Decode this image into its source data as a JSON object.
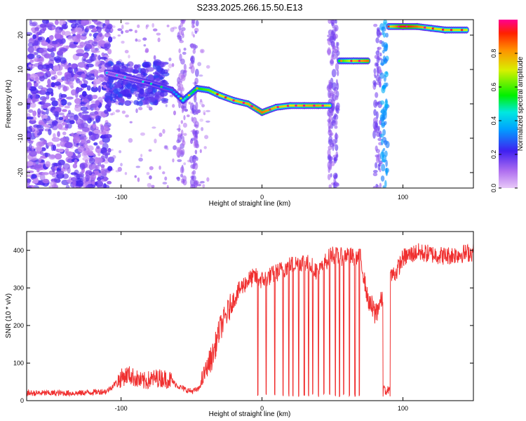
{
  "title": "S233.2025.266.15.50.E13",
  "chart_data": [
    {
      "type": "heatmap",
      "xlabel": "Height of straight line (km)",
      "ylabel": "Frequency (Hz)",
      "xlim": [
        -167,
        150
      ],
      "ylim": [
        -24.5,
        24.5
      ],
      "xticks": [
        -100,
        0,
        100
      ],
      "yticks": [
        20,
        10,
        0,
        -10,
        -20
      ],
      "colorbar": {
        "label": "Normalized spectral amplitude",
        "range": [
          0,
          1
        ],
        "ticks": [
          "0.0",
          "0.2",
          "0.4",
          "0.6",
          "0.8"
        ],
        "tick_values": [
          0.0,
          0.2,
          0.4,
          0.6,
          0.8
        ]
      },
      "ridge": [
        {
          "x": -110,
          "y": 9,
          "amp": 0.15
        },
        {
          "x": -100,
          "y": 8,
          "amp": 0.15
        },
        {
          "x": -90,
          "y": 7,
          "amp": 0.18
        },
        {
          "x": -80,
          "y": 6,
          "amp": 0.22
        },
        {
          "x": -64,
          "y": 4,
          "amp": 0.3
        },
        {
          "x": -56,
          "y": 1,
          "amp": 0.45
        },
        {
          "x": -46,
          "y": 4.5,
          "amp": 0.55
        },
        {
          "x": -38,
          "y": 4,
          "amp": 0.62
        },
        {
          "x": -30,
          "y": 2.5,
          "amp": 0.7
        },
        {
          "x": -20,
          "y": 1,
          "amp": 0.74
        },
        {
          "x": -10,
          "y": 0,
          "amp": 0.78
        },
        {
          "x": 0,
          "y": -2.5,
          "amp": 0.85
        },
        {
          "x": 10,
          "y": -1,
          "amp": 0.75
        },
        {
          "x": 20,
          "y": -0.5,
          "amp": 0.72
        },
        {
          "x": 30,
          "y": -0.5,
          "amp": 0.78
        },
        {
          "x": 40,
          "y": -0.5,
          "amp": 0.8
        },
        {
          "x": 48,
          "y": -0.5,
          "amp": 0.7
        },
        {
          "x": 55,
          "y": 12.5,
          "amp": 0.55
        },
        {
          "x": 65,
          "y": 12.5,
          "amp": 0.75
        },
        {
          "x": 75,
          "y": 12.5,
          "amp": 0.85
        },
        {
          "x": 90,
          "y": 22.5,
          "amp": 0.7
        },
        {
          "x": 100,
          "y": 22.5,
          "amp": 0.95
        },
        {
          "x": 110,
          "y": 22.5,
          "amp": 0.85
        },
        {
          "x": 120,
          "y": 22,
          "amp": 0.7
        },
        {
          "x": 130,
          "y": 21.5,
          "amp": 0.72
        },
        {
          "x": 145,
          "y": 21.5,
          "amp": 0.7
        }
      ]
    },
    {
      "type": "line",
      "xlabel": "Height of straight line (km)",
      "ylabel": "SNR (10 * v/v)",
      "xlim": [
        -167,
        150
      ],
      "ylim": [
        0,
        450
      ],
      "xticks": [
        -100,
        0,
        100
      ],
      "yticks": [
        0,
        100,
        200,
        300,
        400
      ],
      "color": "#f03030",
      "series": [
        {
          "x": [
            -167,
            -150,
            -130,
            -110,
            -100,
            -95,
            -90,
            -85,
            -80,
            -75,
            -70,
            -65,
            -60,
            -55,
            -50,
            -45,
            -40,
            -35,
            -30,
            -25,
            -20,
            -15,
            -10,
            -5,
            0,
            5,
            10,
            15,
            20,
            25,
            30,
            35,
            40,
            45,
            50,
            55,
            60,
            65,
            70,
            75,
            80,
            85,
            88,
            90,
            95,
            100,
            110,
            120,
            130,
            140,
            150
          ],
          "y": [
            20,
            20,
            20,
            25,
            60,
            70,
            60,
            50,
            55,
            60,
            60,
            55,
            40,
            30,
            25,
            30,
            80,
            120,
            190,
            230,
            270,
            300,
            320,
            330,
            320,
            330,
            340,
            350,
            360,
            365,
            370,
            360,
            340,
            370,
            390,
            380,
            390,
            380,
            380,
            270,
            230,
            270,
            230,
            330,
            340,
            380,
            395,
            390,
            385,
            390,
            395
          ]
        }
      ],
      "dropouts": [
        -3,
        3,
        9,
        15,
        19,
        22,
        26,
        30,
        33,
        36,
        40,
        44,
        48,
        52,
        55,
        58,
        62,
        66,
        69,
        86,
        87,
        88,
        89,
        90
      ]
    }
  ]
}
